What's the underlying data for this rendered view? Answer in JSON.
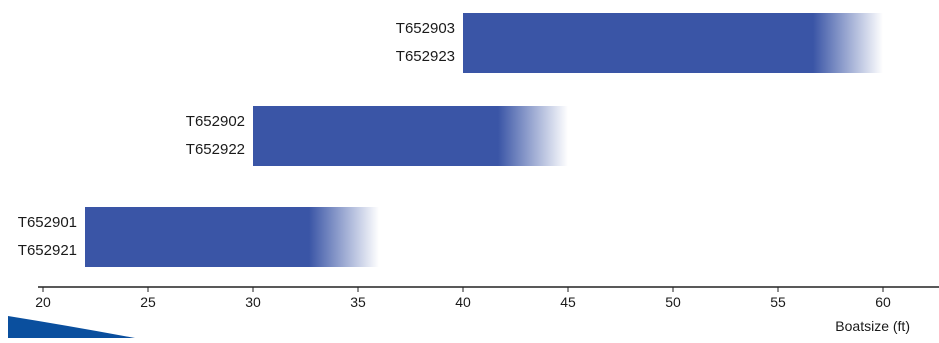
{
  "chart_data": {
    "type": "bar",
    "orientation": "horizontal-range",
    "xlabel": "Boatsize (ft)",
    "xlim": [
      20,
      62
    ],
    "ticks": [
      20,
      25,
      30,
      35,
      40,
      45,
      50,
      55,
      60
    ],
    "grid": false,
    "legend": "none",
    "bar_color": "#3a55a6",
    "bar_fade": "right edge fades to white",
    "bars": [
      {
        "labels": [
          "T652903",
          "T652923"
        ],
        "start": 40,
        "end": 60
      },
      {
        "labels": [
          "T652902",
          "T652922"
        ],
        "start": 30,
        "end": 45
      },
      {
        "labels": [
          "T652901",
          "T652921"
        ],
        "start": 22,
        "end": 36
      }
    ]
  },
  "decoration": {
    "swoosh_color": "#0a4f9e"
  }
}
